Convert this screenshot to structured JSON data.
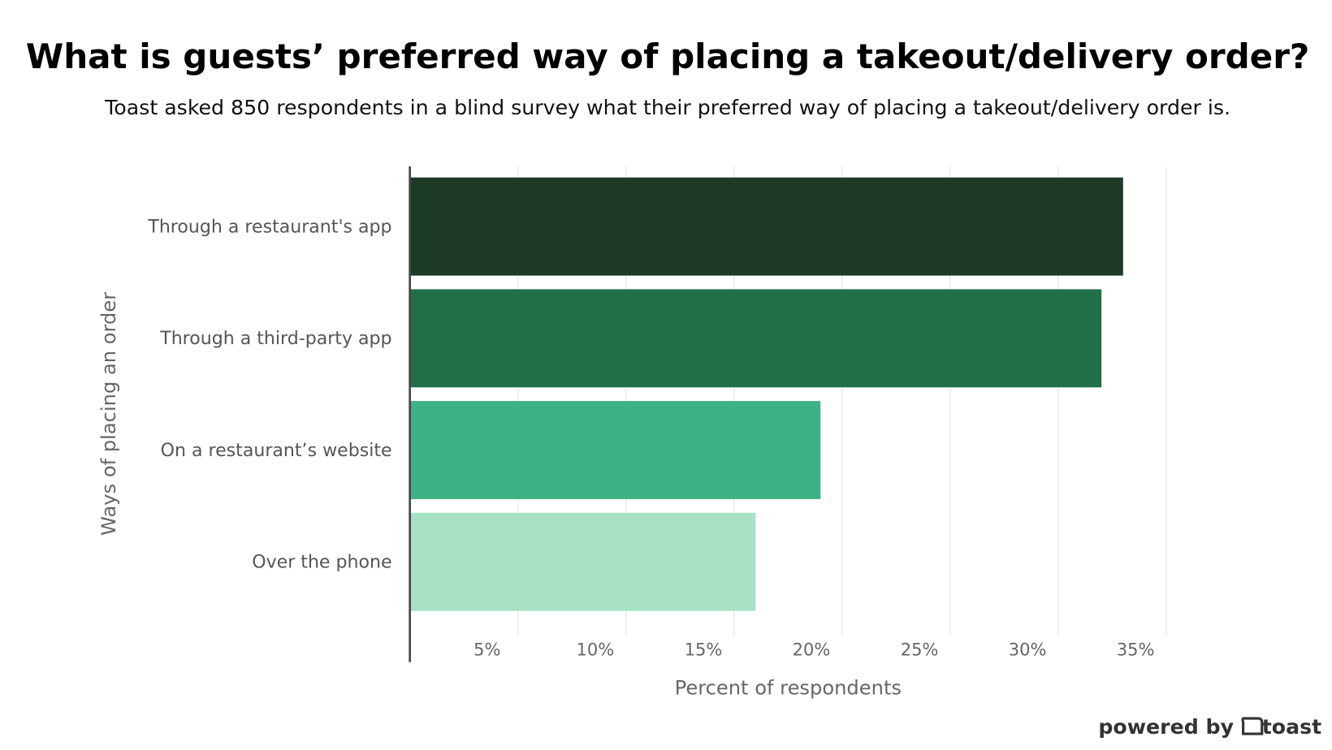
{
  "chart_data": {
    "type": "bar",
    "orientation": "horizontal",
    "title": "What is guests’ preferred way of placing a takeout/delivery order?",
    "subtitle": "Toast asked 850 respondents in a blind survey what their preferred way of placing a takeout/delivery order is.",
    "y_label": "Ways of placing an order",
    "x_label": "Percent of respondents",
    "categories": [
      "Through a restaurant's app",
      "Through a third-party app",
      "On a restaurant’s website",
      "Over the phone"
    ],
    "values": [
      33,
      32,
      19,
      16
    ],
    "colors": [
      "#1d3b27",
      "#21704a",
      "#3db385",
      "#a7e2c6"
    ],
    "xlim": [
      0,
      35
    ],
    "xticks": [
      {
        "value": 5,
        "label": "5%"
      },
      {
        "value": 10,
        "label": "10%"
      },
      {
        "value": 15,
        "label": "15%"
      },
      {
        "value": 20,
        "label": "20%"
      },
      {
        "value": 25,
        "label": "25%"
      },
      {
        "value": 30,
        "label": "30%"
      },
      {
        "value": 35,
        "label": "35%"
      }
    ],
    "grid": true
  },
  "footer": {
    "prefix": "powered by",
    "brand": "toast"
  }
}
